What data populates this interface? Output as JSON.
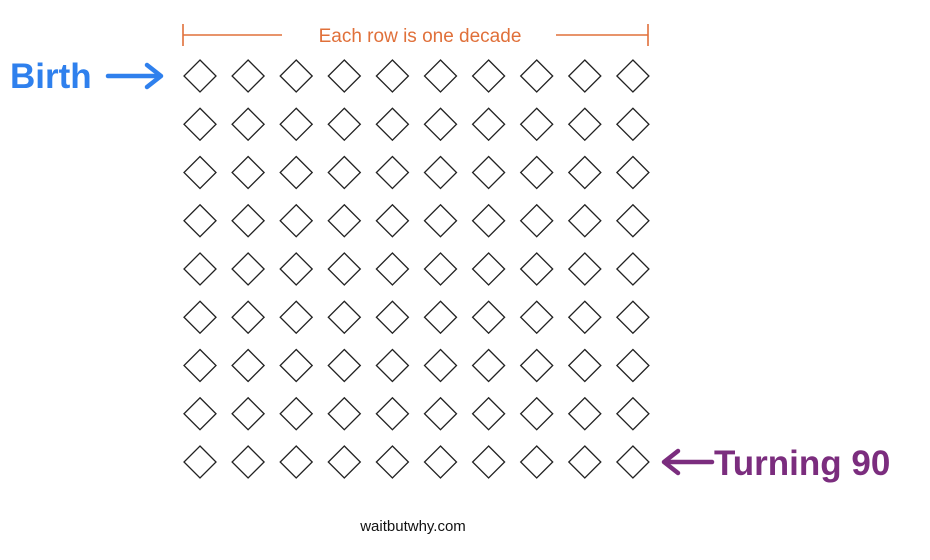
{
  "header": {
    "label": "Each row is one decade",
    "color": "#e0703a"
  },
  "grid": {
    "rows": 9,
    "columns": 10,
    "diamond_count": 90,
    "stroke_color": "#222222"
  },
  "markers": {
    "start": {
      "label": "Birth",
      "arrow": "right-arrow",
      "color": "#2f80ed",
      "row": 1,
      "column": 1
    },
    "end": {
      "label": "Turning 90",
      "arrow": "left-arrow",
      "color": "#7b2d7e",
      "row": 9,
      "column": 10
    }
  },
  "footer": {
    "source": "waitbutwhy.com"
  }
}
